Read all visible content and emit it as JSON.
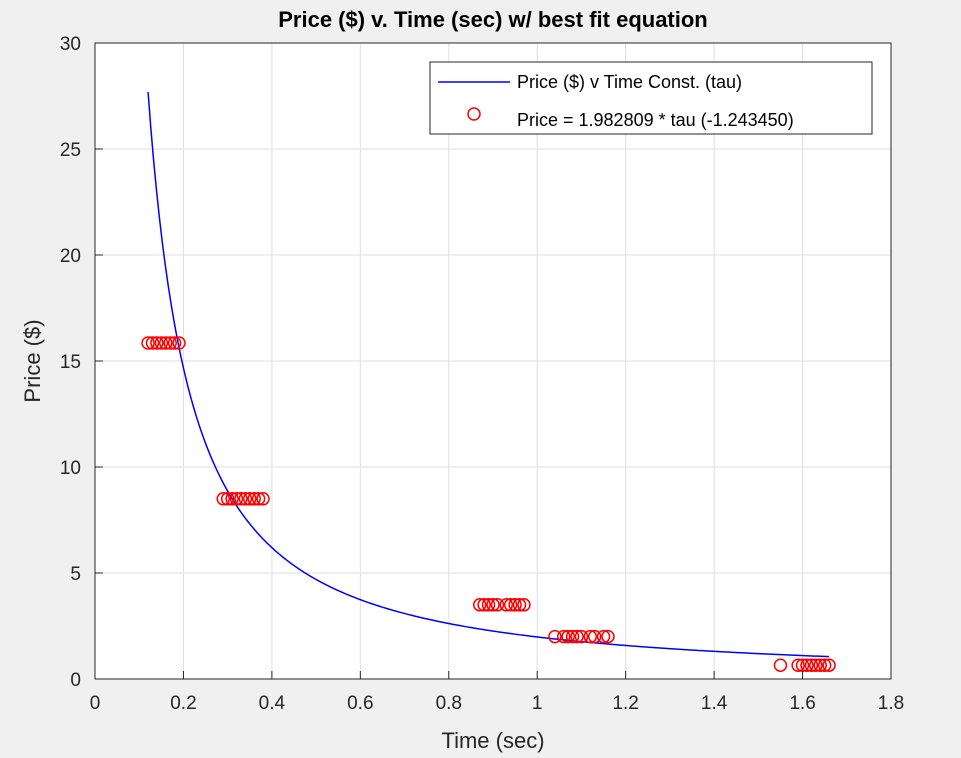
{
  "chart_data": {
    "type": "scatter",
    "title": "Price ($) v. Time (sec) w/ best fit equation",
    "xlabel": "Time (sec)",
    "ylabel": "Price ($)",
    "xlim": [
      0,
      1.8
    ],
    "ylim": [
      0,
      30
    ],
    "xticks": [
      0,
      0.2,
      0.4,
      0.6,
      0.8,
      1,
      1.2,
      1.4,
      1.6,
      1.8
    ],
    "xtick_labels": [
      "0",
      "0.2",
      "0.4",
      "0.6",
      "0.8",
      "1",
      "1.2",
      "1.4",
      "1.6",
      "1.8"
    ],
    "yticks": [
      0,
      5,
      10,
      15,
      20,
      25,
      30
    ],
    "ytick_labels": [
      "0",
      "5",
      "10",
      "15",
      "20",
      "25",
      "30"
    ],
    "grid": true,
    "legend_position": "top-right",
    "legend": [
      {
        "label": "Price ($) v Time Const. (tau)",
        "style": "line",
        "color": "#0000ff"
      },
      {
        "label": "Price = 1.982809 * tau  (-1.243450)",
        "style": "circle",
        "color": "#ff0000"
      }
    ],
    "fit": {
      "coefficient": 1.982809,
      "exponent": -1.24345,
      "x_range": [
        0.12,
        1.66
      ],
      "color": "#0000ff"
    },
    "points": {
      "color": "#ff0000",
      "x": [
        0.12,
        0.13,
        0.14,
        0.15,
        0.16,
        0.17,
        0.18,
        0.19,
        0.29,
        0.3,
        0.31,
        0.32,
        0.33,
        0.34,
        0.35,
        0.36,
        0.37,
        0.38,
        0.87,
        0.88,
        0.89,
        0.9,
        0.91,
        0.93,
        0.94,
        0.95,
        0.96,
        0.97,
        1.04,
        1.06,
        1.07,
        1.08,
        1.09,
        1.1,
        1.12,
        1.13,
        1.15,
        1.16,
        1.55,
        1.59,
        1.6,
        1.61,
        1.62,
        1.63,
        1.64,
        1.65,
        1.66
      ],
      "y": [
        15.85,
        15.85,
        15.85,
        15.85,
        15.85,
        15.85,
        15.85,
        15.85,
        8.5,
        8.5,
        8.5,
        8.5,
        8.5,
        8.5,
        8.5,
        8.5,
        8.5,
        8.5,
        3.5,
        3.5,
        3.5,
        3.5,
        3.5,
        3.5,
        3.5,
        3.5,
        3.5,
        3.5,
        2.0,
        2.0,
        2.0,
        2.0,
        2.0,
        2.0,
        2.0,
        2.0,
        2.0,
        2.0,
        0.65,
        0.65,
        0.65,
        0.65,
        0.65,
        0.65,
        0.65,
        0.65,
        0.65
      ]
    }
  }
}
